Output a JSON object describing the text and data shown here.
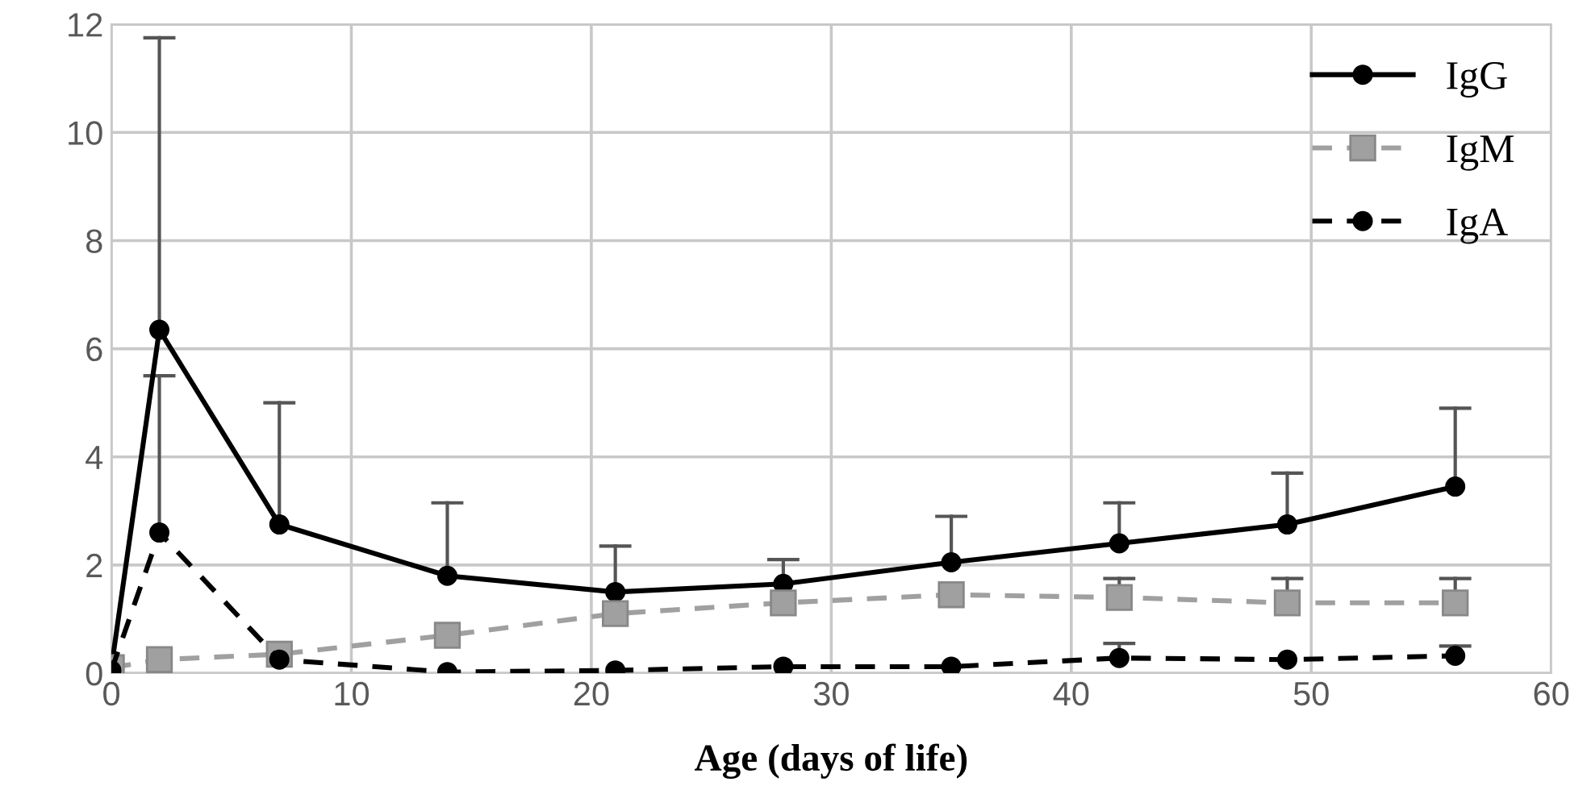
{
  "chart_data": {
    "type": "line",
    "xlabel": "Age (days of life)",
    "x": [
      0,
      2,
      7,
      14,
      21,
      28,
      35,
      42,
      49,
      56
    ],
    "series": [
      {
        "name": "IgG",
        "color": "#000000",
        "marker": "circle",
        "line_style": "solid",
        "values": [
          0.1,
          6.35,
          2.75,
          1.8,
          1.5,
          1.65,
          2.05,
          2.4,
          2.75,
          3.45
        ],
        "errors": [
          null,
          [
            6.35,
            11.75
          ],
          [
            2.75,
            5.0
          ],
          [
            1.8,
            3.15
          ],
          [
            1.5,
            2.35
          ],
          [
            1.65,
            2.1
          ],
          [
            2.05,
            2.9
          ],
          [
            2.4,
            3.15
          ],
          [
            2.75,
            3.7
          ],
          [
            3.45,
            4.9
          ]
        ]
      },
      {
        "name": "IgM",
        "color": "#a0a0a0",
        "marker": "square",
        "line_style": "dashed",
        "values": [
          0.1,
          0.25,
          0.35,
          0.7,
          1.1,
          1.3,
          1.45,
          1.4,
          1.3,
          1.3
        ],
        "errors": [
          null,
          null,
          null,
          null,
          null,
          null,
          null,
          [
            1.4,
            1.75
          ],
          [
            1.3,
            1.75
          ],
          [
            1.3,
            1.75
          ]
        ]
      },
      {
        "name": "IgA",
        "color": "#000000",
        "marker": "circle",
        "line_style": "dashed",
        "values": [
          0.05,
          2.6,
          0.25,
          0.02,
          0.05,
          0.12,
          0.12,
          0.28,
          0.25,
          0.32
        ],
        "errors": [
          null,
          [
            2.6,
            5.5
          ],
          null,
          null,
          null,
          null,
          null,
          [
            0.28,
            0.55
          ],
          null,
          [
            0.32,
            0.5
          ]
        ]
      }
    ],
    "xlim": [
      0,
      60
    ],
    "xticks": [
      0,
      10,
      20,
      30,
      40,
      50,
      60
    ],
    "ylim": [
      0,
      12
    ],
    "yticks": [
      0,
      2,
      4,
      6,
      8,
      10,
      12
    ],
    "grid": true,
    "legend": "top right"
  }
}
